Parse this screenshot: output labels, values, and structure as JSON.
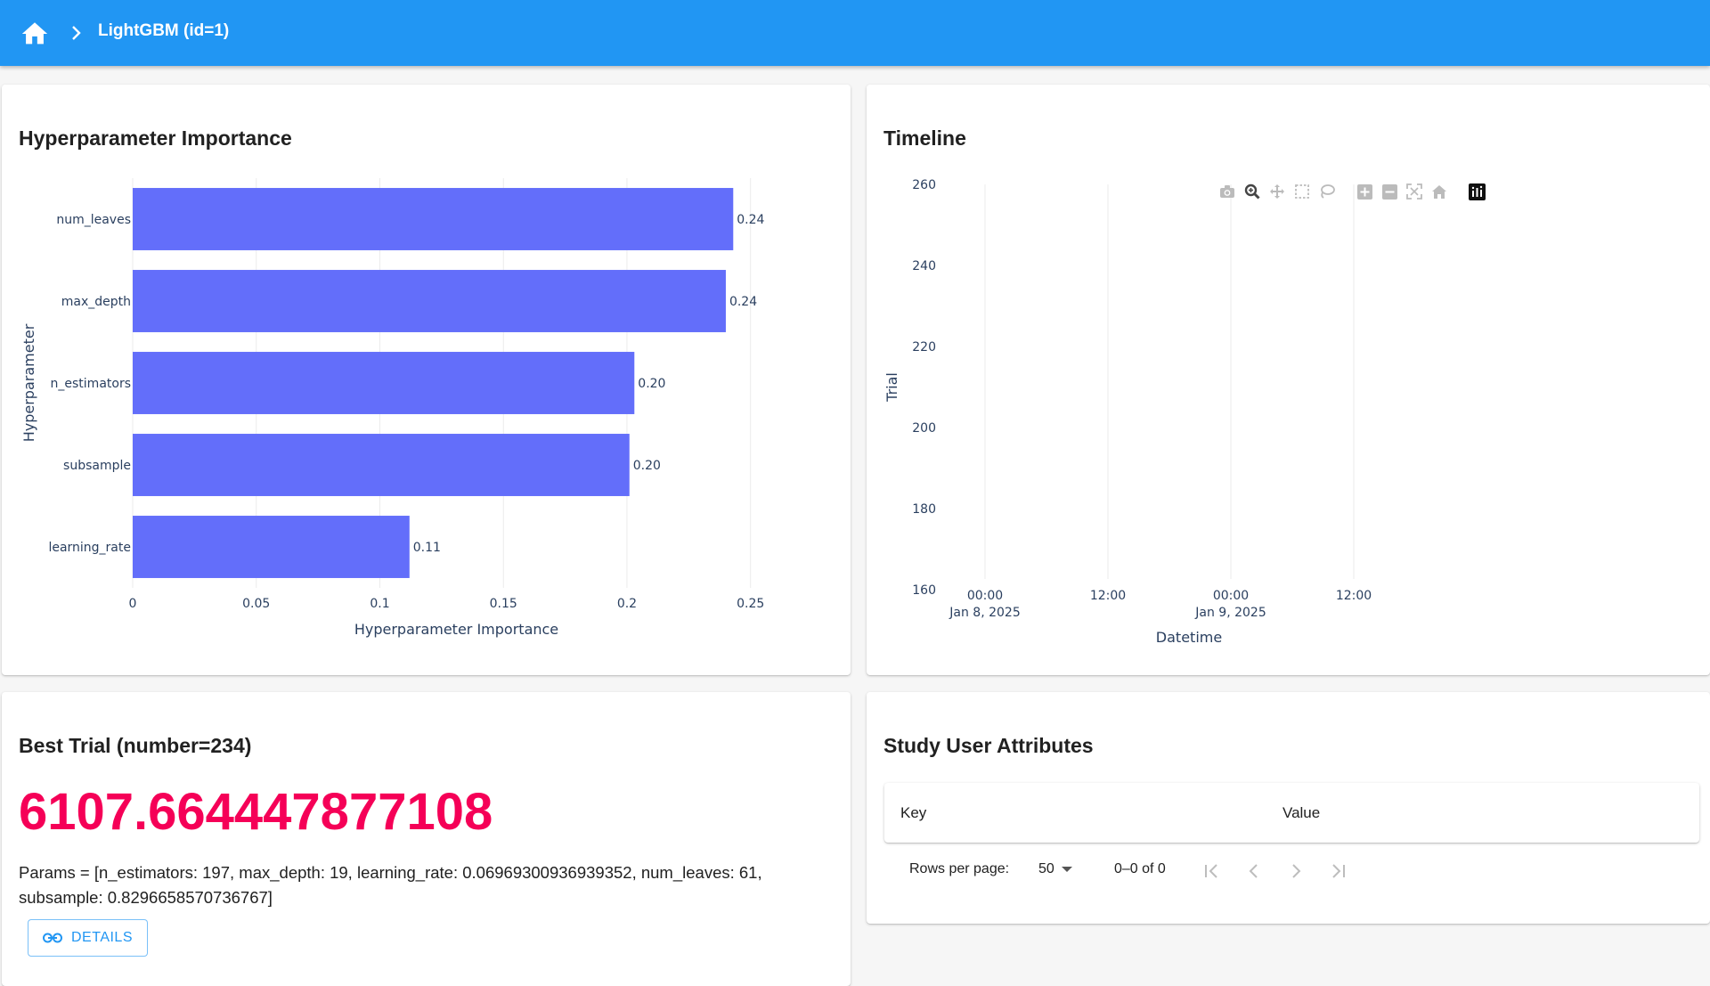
{
  "header": {
    "title": "LightGBM (id=1)"
  },
  "importance": {
    "card_title": "Hyperparameter Importance",
    "chart_data": {
      "type": "bar",
      "orientation": "horizontal",
      "categories": [
        "num_leaves",
        "max_depth",
        "n_estimators",
        "subsample",
        "learning_rate"
      ],
      "values": [
        0.243,
        0.24,
        0.203,
        0.201,
        0.112
      ],
      "value_labels": [
        "0.24",
        "0.24",
        "0.20",
        "0.20",
        "0.11"
      ],
      "x_ticks": [
        "0",
        "0.05",
        "0.1",
        "0.15",
        "0.2",
        "0.25"
      ],
      "xlim": [
        0,
        0.262
      ],
      "xlabel": "Hyperparameter Importance",
      "ylabel": "Hyperparameter",
      "bar_color": "#636efa",
      "grid": true
    }
  },
  "timeline": {
    "card_title": "Timeline",
    "chart_data": {
      "type": "scatter",
      "series": [],
      "ylim": [
        160,
        260
      ],
      "y_ticks": [
        "160",
        "180",
        "200",
        "220",
        "240",
        "260"
      ],
      "x_ticks": [
        {
          "time": "00:00",
          "date": "Jan 8, 2025"
        },
        {
          "time": "12:00",
          "date": ""
        },
        {
          "time": "00:00",
          "date": "Jan 9, 2025"
        },
        {
          "time": "12:00",
          "date": ""
        }
      ],
      "xlabel": "Datetime",
      "ylabel": "Trial",
      "grid": true
    },
    "modebar": [
      "camera-icon",
      "zoom-icon",
      "pan-icon",
      "box-select-icon",
      "lasso-icon",
      "zoom-in-icon",
      "zoom-out-icon",
      "autoscale-icon",
      "reset-axes-icon",
      "plotly-logo-icon"
    ]
  },
  "best_trial": {
    "card_title": "Best Trial (number=234)",
    "value": "6107.664447877108",
    "params": "Params = [n_estimators: 197, max_depth: 19, learning_rate: 0.06969300936939352, num_leaves: 61, subsample: 0.8296658570736767]",
    "details_label": "DETAILS"
  },
  "user_attributes": {
    "card_title": "Study User Attributes",
    "columns": [
      "Key",
      "Value"
    ],
    "rows": [],
    "rows_per_page_label": "Rows per page:",
    "rows_per_page": "50",
    "range_label": "0–0 of 0"
  },
  "colors": {
    "appbar": "#2196f3",
    "accent": "#f50057",
    "bar": "#636efa"
  }
}
